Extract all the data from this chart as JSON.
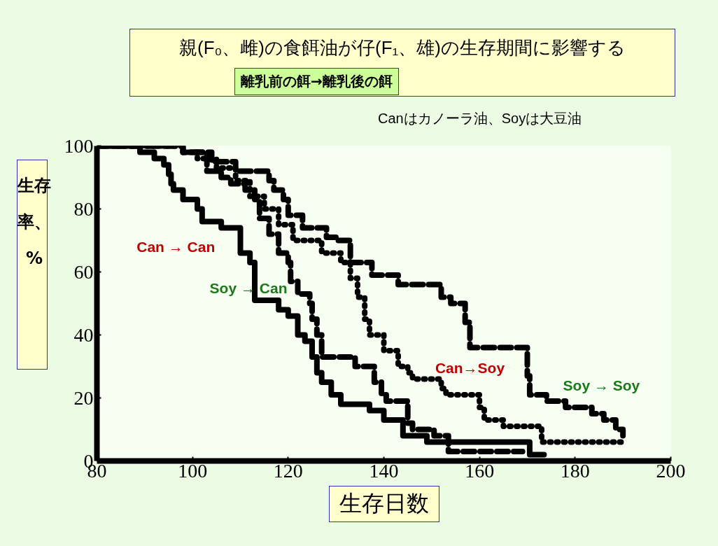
{
  "chart_data": {
    "type": "step",
    "title": "親(F₀、雌)の食餌油が仔(F₁、雄)の生存期間に影響する",
    "subtitle": "離乳前の餌→離乳後の餌",
    "annotations": [
      "Canはカノーラ油、Soyは大豆油"
    ],
    "xlabel": "生存日数",
    "ylabel": "生存率、%",
    "xlim": [
      80,
      200
    ],
    "xticks": [
      80,
      100,
      120,
      140,
      160,
      180,
      200
    ],
    "ylim": [
      0,
      100
    ],
    "yticks": [
      0,
      20,
      40,
      60,
      80,
      100
    ],
    "grid": false,
    "marker": "none",
    "series": [
      {
        "name": "Can → Can",
        "color": "#000000",
        "line_style": "solid",
        "x": [
          80,
          89,
          92,
          94,
          95,
          95.5,
          96,
          98,
          101,
          102,
          106,
          110,
          112,
          113,
          118,
          120,
          122,
          123.5,
          125,
          126,
          127,
          129,
          131,
          137,
          140,
          144,
          149,
          170.5,
          173.5
        ],
        "values": [
          100,
          98,
          96,
          94,
          91,
          88,
          86,
          83,
          80,
          76,
          74,
          66,
          63,
          51,
          48,
          46,
          40,
          38,
          33,
          28,
          25,
          21,
          18,
          16,
          13,
          8,
          6,
          2,
          2
        ]
      },
      {
        "name": "Soy → Can",
        "color": "#000000",
        "line_style": "dashed",
        "x": [
          80,
          98,
          103,
          106,
          108,
          111,
          113,
          114,
          116,
          118,
          120,
          120.5,
          122,
          124.5,
          125,
          126,
          127,
          134,
          138,
          139.5,
          140.5,
          145,
          146,
          150.5,
          153.5,
          169
        ],
        "values": [
          100,
          98,
          92,
          90,
          88,
          86,
          83,
          77,
          72,
          66,
          63,
          57,
          53,
          50,
          45,
          40,
          33,
          30,
          25,
          21,
          19,
          12,
          10,
          8,
          3,
          3
        ]
      },
      {
        "name": "Can→Soy",
        "color": "#000000",
        "line_style": "dotted",
        "x": [
          80,
          98,
          101,
          105,
          109,
          112,
          115,
          118,
          121,
          127,
          131,
          133,
          134.5,
          136,
          137,
          140,
          143,
          145,
          146,
          152,
          153,
          160,
          161,
          165,
          173,
          190
        ],
        "values": [
          100,
          98,
          96,
          93,
          89,
          84,
          80,
          75,
          70,
          66,
          63,
          58,
          52,
          45,
          40,
          35,
          30,
          28,
          26,
          23,
          21,
          17,
          13,
          11,
          6,
          6
        ]
      },
      {
        "name": "Soy → Soy",
        "color": "#000000",
        "line_style": "dashed",
        "x": [
          80,
          98,
          104,
          109,
          116,
          117,
          119,
          120,
          123,
          128,
          130,
          133,
          137.5,
          143,
          152,
          154,
          157,
          158,
          170,
          170.5,
          174,
          178,
          183.5,
          186,
          188.5,
          190
        ],
        "values": [
          100,
          98,
          95,
          92,
          89,
          86,
          83,
          78,
          74,
          71,
          70,
          63,
          59,
          56,
          52,
          50,
          44,
          36,
          27,
          21,
          19,
          17,
          15,
          13,
          10,
          8
        ]
      }
    ]
  }
}
